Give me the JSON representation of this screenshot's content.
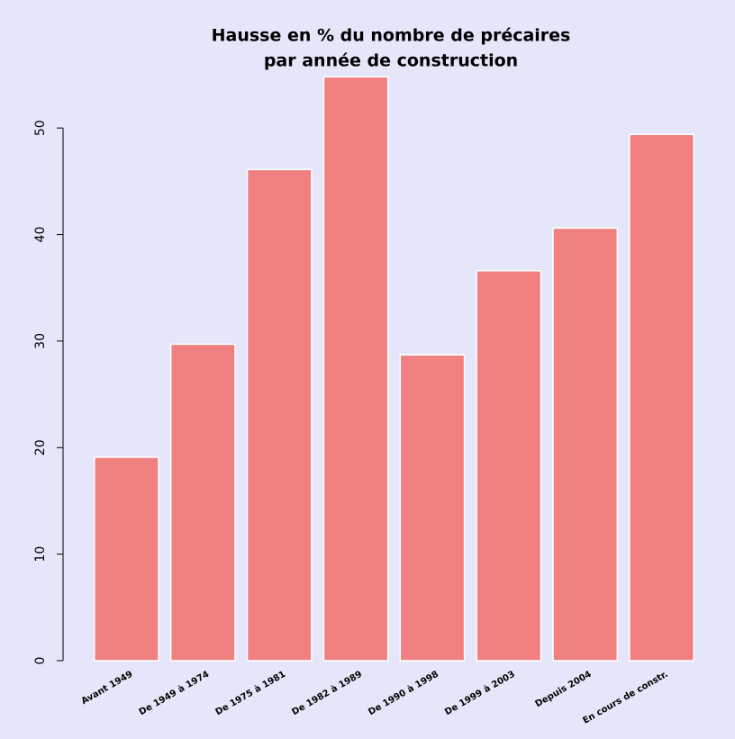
{
  "chart_data": {
    "type": "bar",
    "title": [
      "Hausse en % du nombre de précaires",
      "par année de construction"
    ],
    "categories": [
      "Avant 1949",
      "De 1949 à 1974",
      "De 1975 à 1981",
      "De 1982 à 1989",
      "De 1990 à 1998",
      "De 1999 à 2003",
      "Depuis 2004",
      "En cours de constr."
    ],
    "values": [
      19.1,
      29.7,
      46.1,
      54.8,
      28.7,
      36.6,
      40.6,
      49.4
    ],
    "color": "#f08080",
    "ylim": [
      0,
      55
    ],
    "yticks": [
      0,
      10,
      20,
      30,
      40,
      50
    ],
    "grid": false
  }
}
